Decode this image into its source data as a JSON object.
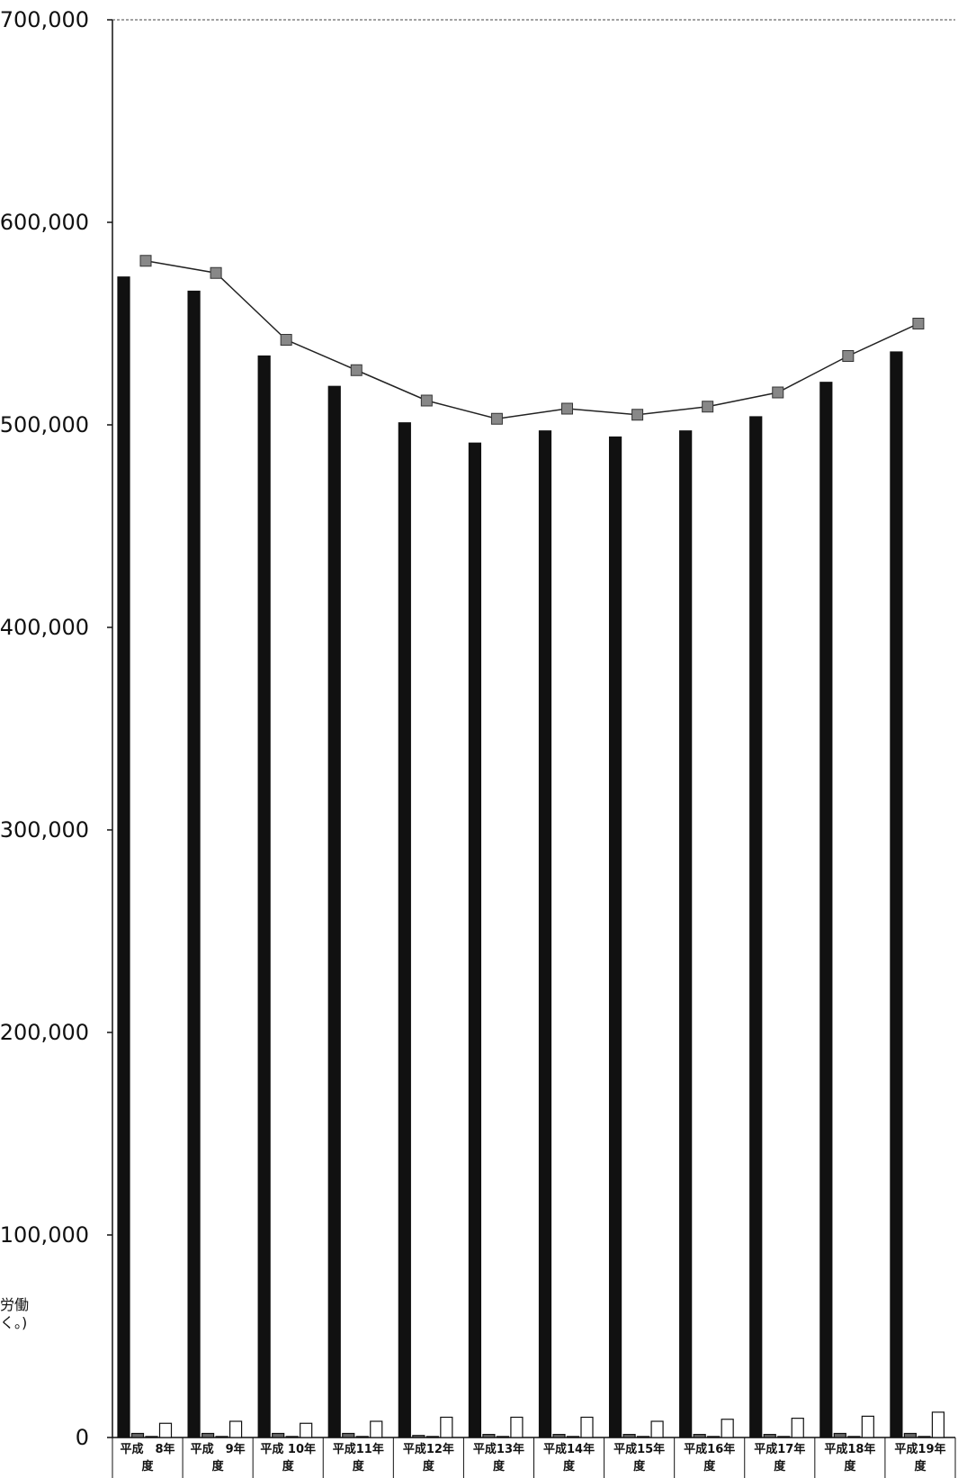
{
  "chart_data": {
    "type": "bar",
    "title": "",
    "xlabel": "",
    "ylabel": "",
    "ylim": [
      0,
      700000
    ],
    "yticks": [
      0,
      100000,
      200000,
      300000,
      400000,
      500000,
      600000,
      700000
    ],
    "ytick_labels": [
      "0",
      "100,000",
      "200,000",
      "300,000",
      "400,000",
      "500,000",
      "600,000",
      "700,000"
    ],
    "grid": false,
    "categories": [
      {
        "line1": "平成　8年",
        "line2": "度"
      },
      {
        "line1": "平成　9年",
        "line2": "度"
      },
      {
        "line1": "平成 10年",
        "line2": "度"
      },
      {
        "line1": "平成11年",
        "line2": "度"
      },
      {
        "line1": "平成12年",
        "line2": "度"
      },
      {
        "line1": "平成13年",
        "line2": "度"
      },
      {
        "line1": "平成14年",
        "line2": "度"
      },
      {
        "line1": "平成15年",
        "line2": "度"
      },
      {
        "line1": "平成16年",
        "line2": "度"
      },
      {
        "line1": "平成17年",
        "line2": "度"
      },
      {
        "line1": "平成18年",
        "line2": "度"
      },
      {
        "line1": "平成19年",
        "line2": "度"
      }
    ],
    "series": [
      {
        "kind": "bar",
        "color": "#111111",
        "values": [
          573000,
          566000,
          534000,
          519000,
          501000,
          491000,
          497000,
          494000,
          497000,
          504000,
          521000,
          536000
        ]
      },
      {
        "kind": "bar",
        "color": "#666666",
        "values": [
          2000,
          2000,
          2000,
          2000,
          1000,
          1500,
          1500,
          1500,
          1500,
          1500,
          2000,
          2000
        ]
      },
      {
        "kind": "bar",
        "color": "#d0d0d0",
        "values": [
          500,
          500,
          500,
          500,
          500,
          500,
          500,
          500,
          500,
          500,
          500,
          500
        ]
      },
      {
        "kind": "bar",
        "color": "#ffffff",
        "values": [
          7000,
          8000,
          7000,
          8000,
          10000,
          10000,
          10000,
          8000,
          9000,
          9500,
          10500,
          12500
        ]
      },
      {
        "kind": "line",
        "color": "#888888",
        "values": [
          581000,
          575000,
          542000,
          527000,
          512000,
          503000,
          508000,
          505000,
          509000,
          516000,
          534000,
          550000
        ]
      }
    ],
    "side_label_fragments": [
      "労働",
      "く。)"
    ]
  }
}
